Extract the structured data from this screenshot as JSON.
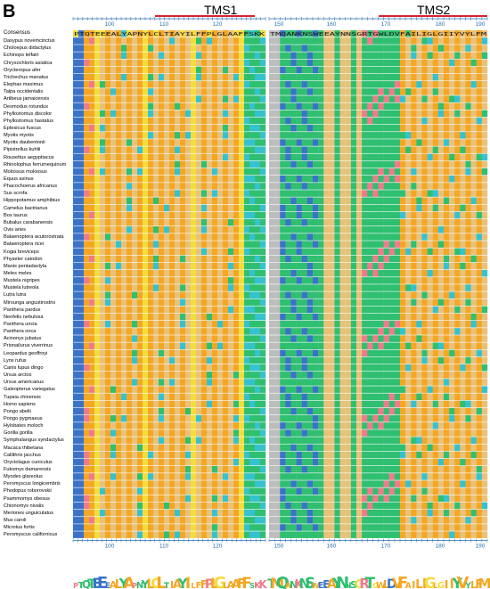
{
  "panel_label": "B",
  "tms1_label": "TMS1",
  "tms2_label": "TMS2",
  "consensus_label": "Consensus",
  "ruler_labels_top": [
    "100",
    "110",
    "120",
    "150",
    "160",
    "170",
    "180",
    "190"
  ],
  "ruler_labels_bottom": [
    "100",
    "110",
    "120",
    "150",
    "160",
    "170",
    "180",
    "190"
  ],
  "species": [
    "Dasypus novemcinctus",
    "Choloepus didactylus",
    "Echinops telfairi",
    "Chrysochloris asiatica",
    "Orycteropus afer",
    "Trichechus manatus",
    "Elephas maximus",
    "Talpa occidentalis",
    "Artibeus jamaicensis",
    "Desmodus rotundus",
    "Phyllostomus discolor",
    "Phyllostomus hastatus",
    "Eptesicus fuscus",
    "Myotis myotis",
    "Myotis daubentonii",
    "Pipistrellus kuhlii",
    "Rousettus aegyptiacus",
    "Rhinolophus ferrumequinum",
    "Molossus molossus",
    "Equus asinus",
    "Phacochoerus africanus",
    "Sus scrofa",
    "Hippopotamus amphibius",
    "Camelus bactrianus",
    "Bos taurus",
    "Bubalus carabanensis",
    "Ovis aries",
    "Balaenoptera acutorostrata",
    "Balaenoptera ricei",
    "Kogia breviceps",
    "Physeter catodon",
    "Manis pentadactyla",
    "Meles meles",
    "Mustela nigripes",
    "Mustela lutreola",
    "Lutra lutra",
    "Mirounga angustirostris",
    "Panthera pardus",
    "Neofelis nebulosa",
    "Panthera uncia",
    "Panthera onca",
    "Acinonyx jubatus",
    "Prionailurus viverrinus",
    "Leopardus geoffroyi",
    "Lynx rufus",
    "Canis lupus dingo",
    "Ursus arctos",
    "Ursus americanus",
    "Galeopterus variegatus",
    "Tupaia chinensis",
    "Homo sapiens",
    "Pongo abelii",
    "Pongo pygmaeus",
    "Hylobates moloch",
    "Gorilla gorilla",
    "Symphalangus syndactylus",
    "Macaca thibetana",
    "Callithrix jacchus",
    "Oryctolagus cuniculus",
    "Fukomys damarensis",
    "Myodes glareolus",
    "Peromyscus longicembris",
    "Phodopus roborovskii",
    "Psammomys obesus",
    "Chionomys nivalis",
    "Meriones unguiculatus",
    "Mus caroli",
    "Microtus fortis",
    "Peromyscus californicus"
  ],
  "consensus_sequence": "PTQTEEEALYAPNYLCLTIAYILFFPLGLAAFFSKK",
  "consensus_sequence2": "TMQANKNSWEEAYNNSGRTGWLDVFAILIGLGIIYVYLFM",
  "colors": {
    "orange": "#f5a623",
    "tan": "#e8c27a",
    "green": "#2fbf71",
    "blue": "#3a73c9",
    "pink": "#f07a8a",
    "cyan": "#35c2cf",
    "yellow": "#f3dd3c",
    "grey": "#bdbdbd",
    "red_bar": "#d9232e"
  }
}
